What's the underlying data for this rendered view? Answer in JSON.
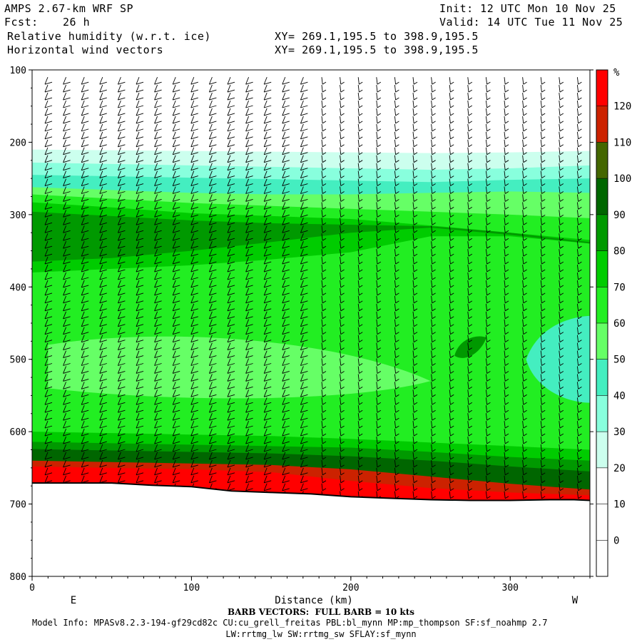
{
  "header": {
    "model": "AMPS 2.67-km WRF SP",
    "fcst_label": "Fcst:",
    "fcst_value": "26 h",
    "field1": "Relative humidity (w.r.t. ice)",
    "field2": "Horizontal wind vectors",
    "xy1": "XY= 269.1,195.5 to 398.9,195.5",
    "xy2": "XY= 269.1,195.5 to 398.9,195.5",
    "init": "Init: 12 UTC Mon 10 Nov 25",
    "valid": "Valid: 14 UTC Tue 11 Nov 25"
  },
  "colors": {
    "c0": "#ffffff",
    "c10": "#ffffff",
    "c20": "#ffffff",
    "c30": "#ccffee",
    "c40": "#88ffdd",
    "c50": "#44eec0",
    "c60": "#66ff66",
    "c70": "#22ee22",
    "c80": "#00cc00",
    "c90": "#009900",
    "c100": "#006600",
    "c110": "#446600",
    "c120": "#cc2200",
    "c130": "#ff0000"
  },
  "chart_data": {
    "type": "heatmap",
    "title": "Relative humidity (w.r.t. ice)",
    "overlay": "Horizontal wind vectors",
    "xlabel": "Distance (km)",
    "ylabel": "",
    "xlim": [
      0,
      350
    ],
    "ylim": [
      800,
      100
    ],
    "x_ticks": [
      0,
      100,
      200,
      300
    ],
    "y_ticks": [
      100,
      200,
      300,
      400,
      500,
      600,
      700,
      800
    ],
    "x_end_labels": [
      "E",
      "W"
    ],
    "colorbar_unit": "%",
    "colorbar_levels": [
      0,
      10,
      20,
      30,
      40,
      50,
      60,
      70,
      80,
      90,
      100,
      110,
      120
    ],
    "terrain_top_pressure": [
      671,
      671,
      671,
      674,
      676,
      682,
      684,
      686,
      690,
      692,
      694,
      695,
      695,
      694,
      694,
      695
    ],
    "terrain_x": [
      0,
      25,
      50,
      75,
      100,
      125,
      150,
      175,
      200,
      225,
      250,
      275,
      300,
      325,
      340,
      350
    ],
    "barb_caption": "BARB VECTORS:  FULL BARB = 10 kts",
    "model_info": "Model Info: MPASv8.2.3-194-gf29cd82c CU:cu_grell_freitas PBL:bl_mynn MP:mp_thompson SF:sf_noahmp 2.7",
    "model_info2": "LW:rrtmg_lw SW:rrtmg_sw SFLAY:sf_mynn"
  }
}
